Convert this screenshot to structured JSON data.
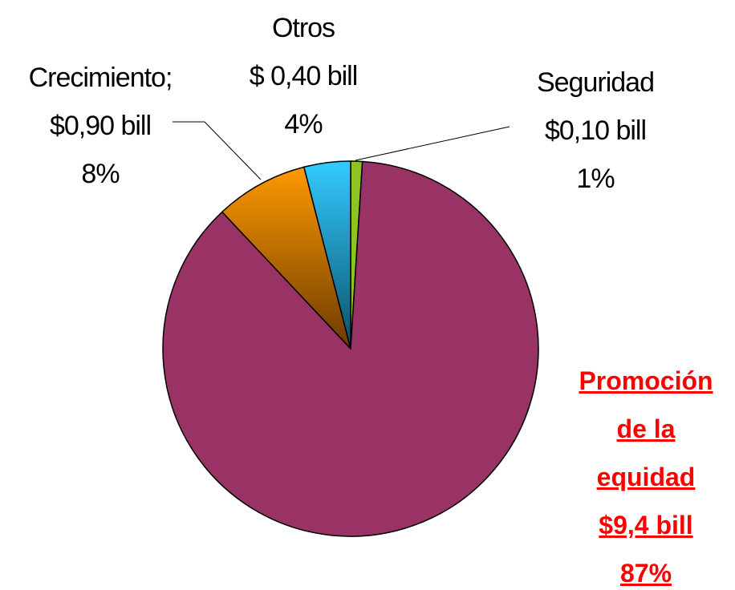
{
  "chart_data": {
    "type": "pie",
    "categories": [
      "Seguridad",
      "Promoción de la equidad",
      "Crecimiento;",
      "Otros"
    ],
    "amounts": [
      "$0,10 bill",
      "$9,4 bill",
      "$0,90 bill",
      "$ 0,40 bill"
    ],
    "values": [
      1,
      87,
      8,
      4
    ],
    "value_labels": [
      "1%",
      "87%",
      "8%",
      "4%"
    ],
    "colors": [
      "#8fc31f",
      "#993366",
      "#ff9900",
      "#33ccff"
    ],
    "start_angle": 90,
    "direction": "clockwise"
  }
}
